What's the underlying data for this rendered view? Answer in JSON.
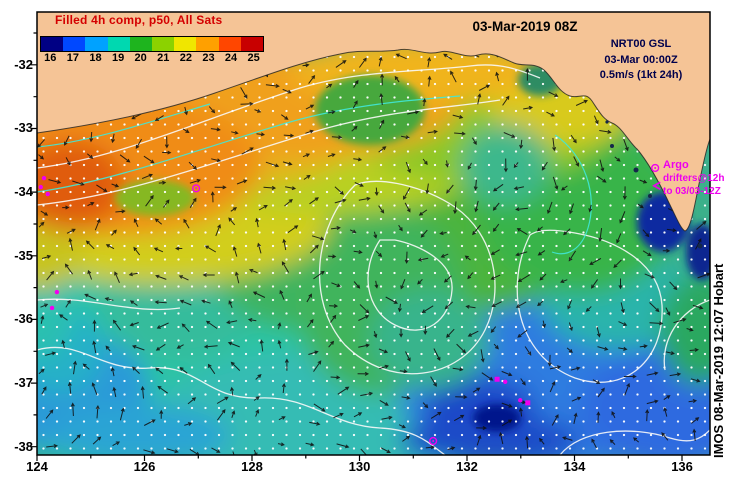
{
  "figure": {
    "date_title": "03-Mar-2019 08Z",
    "credit_vertical": "IMOS 08-Mar-2019 12:07 Hobart"
  },
  "colorbar": {
    "label": "Filled 4h comp, p50, All Sats",
    "label_color": "#d40000",
    "tick_labels": [
      "16",
      "17",
      "18",
      "19",
      "20",
      "21",
      "22",
      "23",
      "24",
      "25"
    ],
    "segment_colors": [
      "#000084",
      "#0048ff",
      "#00a2ff",
      "#00d8b0",
      "#1eb41e",
      "#8cd200",
      "#f0e600",
      "#ffa000",
      "#ff4600",
      "#c80000"
    ]
  },
  "info_panel": {
    "text_color": "#00004c",
    "line1": "NRT00 GSL",
    "line2": "03-Mar 00:00Z",
    "line3": "0.5m/s (1kt 24h)"
  },
  "argo_panel": {
    "text_color": "#ee00ee",
    "title": "Argo",
    "line1": "drifters@12h",
    "line2": "to 03/03-12Z"
  },
  "axes": {
    "x_tick_labels": [
      "124",
      "126",
      "128",
      "130",
      "132",
      "134",
      "136"
    ],
    "x_tick_lons": [
      124,
      126,
      128,
      130,
      132,
      134,
      136
    ],
    "y_tick_labels": [
      "-32",
      "-33",
      "-34",
      "-35",
      "-36",
      "-37",
      "-38"
    ],
    "y_tick_lats": [
      -32,
      -33,
      -34,
      -35,
      -36,
      -37,
      -38
    ]
  },
  "map": {
    "extent": {
      "lon_min": 124,
      "lon_max": 136.52,
      "lat_min": -38.13,
      "lat_max": -31.17
    },
    "land_color": "#f5c496",
    "ocean_base_color": "#3cb08c",
    "marker_color": "#f000f0",
    "sst_regions": [
      {
        "area": "northwest coastal 124-127E",
        "approx_temp_c": "23-25"
      },
      {
        "area": "northern shelf and head of bight",
        "approx_temp_c": "21-23"
      },
      {
        "area": "central bight",
        "approx_temp_c": "20-21"
      },
      {
        "area": "southwest offshore",
        "approx_temp_c": "18-19"
      },
      {
        "area": "southeast offshore",
        "approx_temp_c": "16-18"
      },
      {
        "area": "Eyre Peninsula upwelling",
        "approx_temp_c": "16-17"
      }
    ],
    "argo_markers": [
      {
        "lon": 124.13,
        "lat": -33.78,
        "shape": "dot"
      },
      {
        "lon": 124.07,
        "lat": -33.92,
        "shape": "dot"
      },
      {
        "lon": 124.2,
        "lat": -34.03,
        "shape": "dot"
      },
      {
        "lon": 126.96,
        "lat": -33.94,
        "shape": "ring"
      },
      {
        "lon": 135.5,
        "lat": -33.62,
        "shape": "ring"
      },
      {
        "lon": 135.53,
        "lat": -33.9,
        "shape": "arrow-left"
      },
      {
        "lon": 124.37,
        "lat": -35.57,
        "shape": "dot"
      },
      {
        "lon": 124.28,
        "lat": -35.82,
        "shape": "dot"
      },
      {
        "lon": 132.56,
        "lat": -36.94,
        "shape": "square"
      },
      {
        "lon": 132.71,
        "lat": -36.98,
        "shape": "dot"
      },
      {
        "lon": 132.99,
        "lat": -37.27,
        "shape": "dot"
      },
      {
        "lon": 133.13,
        "lat": -37.31,
        "shape": "square"
      },
      {
        "lon": 131.37,
        "lat": -37.91,
        "shape": "ring"
      }
    ]
  }
}
